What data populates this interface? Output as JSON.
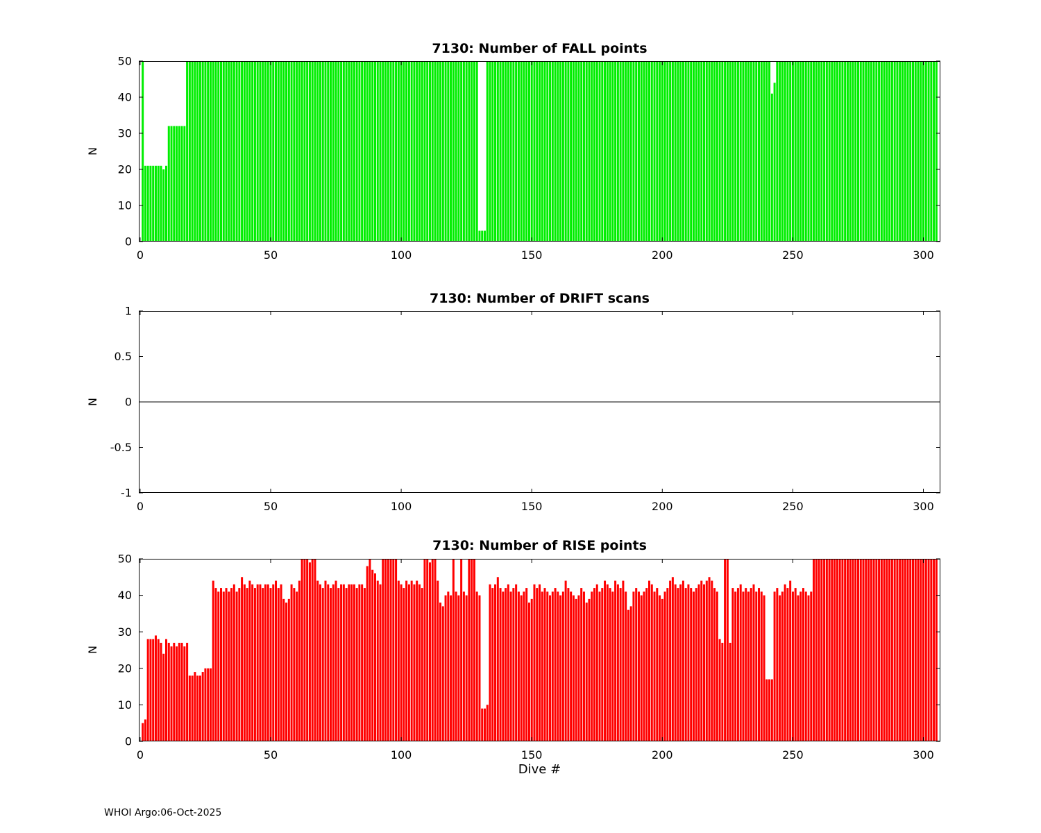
{
  "footer": {
    "text": "WHOI Argo:06-Oct-2025"
  },
  "chart_data": [
    {
      "id": "fall",
      "type": "bar",
      "title": "7130: Number of FALL points",
      "ylabel": "N",
      "xlabel": "",
      "bar_color": "#00ee00",
      "xlim": [
        -0.5,
        306.5
      ],
      "ylim": [
        0,
        50
      ],
      "xticks": [
        0,
        50,
        100,
        150,
        200,
        250,
        300
      ],
      "yticks": [
        0,
        10,
        20,
        30,
        40,
        50
      ],
      "x_start_dive": 1,
      "values": [
        50,
        21,
        21,
        21,
        21,
        21,
        21,
        21,
        20,
        21,
        32,
        32,
        32,
        32,
        32,
        32,
        32,
        50,
        50,
        50,
        50,
        50,
        50,
        50,
        50,
        50,
        50,
        50,
        50,
        50,
        50,
        50,
        50,
        50,
        50,
        50,
        50,
        50,
        50,
        50,
        50,
        50,
        50,
        50,
        50,
        50,
        50,
        50,
        50,
        50,
        50,
        50,
        50,
        50,
        50,
        50,
        50,
        50,
        50,
        50,
        50,
        50,
        50,
        50,
        50,
        50,
        50,
        50,
        50,
        50,
        50,
        50,
        50,
        50,
        50,
        50,
        50,
        50,
        50,
        50,
        50,
        50,
        50,
        50,
        50,
        50,
        50,
        50,
        50,
        50,
        50,
        50,
        50,
        50,
        50,
        50,
        50,
        50,
        50,
        50,
        50,
        50,
        50,
        50,
        50,
        50,
        50,
        50,
        50,
        50,
        50,
        50,
        50,
        50,
        50,
        50,
        50,
        50,
        50,
        50,
        50,
        50,
        50,
        50,
        50,
        50,
        50,
        50,
        50,
        3,
        3,
        3,
        50,
        50,
        50,
        50,
        50,
        50,
        50,
        50,
        50,
        50,
        50,
        50,
        50,
        50,
        50,
        50,
        50,
        50,
        50,
        50,
        50,
        50,
        50,
        50,
        50,
        50,
        50,
        50,
        50,
        50,
        50,
        50,
        50,
        50,
        50,
        50,
        50,
        50,
        50,
        50,
        50,
        50,
        50,
        50,
        50,
        50,
        50,
        50,
        50,
        50,
        50,
        50,
        50,
        50,
        50,
        50,
        50,
        50,
        50,
        50,
        50,
        50,
        50,
        50,
        50,
        50,
        50,
        50,
        50,
        50,
        50,
        50,
        50,
        50,
        50,
        50,
        50,
        50,
        50,
        50,
        50,
        50,
        50,
        50,
        50,
        50,
        50,
        50,
        50,
        50,
        50,
        50,
        50,
        50,
        50,
        50,
        50,
        50,
        50,
        50,
        50,
        50,
        50,
        50,
        50,
        50,
        50,
        50,
        50,
        41,
        44,
        50,
        50,
        50,
        50,
        50,
        50,
        50,
        50,
        50,
        50,
        50,
        50,
        50,
        50,
        50,
        50,
        50,
        50,
        50,
        50,
        50,
        50,
        50,
        50,
        50,
        50,
        50,
        50,
        50,
        50,
        50,
        50,
        50,
        50,
        50,
        50,
        50,
        50,
        50,
        50,
        50,
        50,
        50,
        50,
        50,
        50,
        50,
        50,
        50,
        50,
        50,
        50,
        50,
        50,
        50,
        50,
        50,
        50,
        50,
        50,
        50,
        50
      ]
    },
    {
      "id": "drift",
      "type": "bar",
      "title": "7130: Number of DRIFT scans",
      "ylabel": "N",
      "xlabel": "",
      "bar_color": "#00ee00",
      "xlim": [
        -0.5,
        306.5
      ],
      "ylim": [
        -1,
        1
      ],
      "xticks": [
        0,
        50,
        100,
        150,
        200,
        250,
        300
      ],
      "yticks": [
        -1,
        -0.5,
        0,
        0.5,
        1
      ],
      "x_start_dive": 1,
      "n_dives": 305,
      "constant_value": 0,
      "zero_line": true
    },
    {
      "id": "rise",
      "type": "bar",
      "title": "7130: Number of RISE points",
      "ylabel": "N",
      "xlabel": "Dive #",
      "bar_color": "#ff0000",
      "xlim": [
        -0.5,
        306.5
      ],
      "ylim": [
        0,
        50
      ],
      "xticks": [
        0,
        50,
        100,
        150,
        200,
        250,
        300
      ],
      "yticks": [
        0,
        10,
        20,
        30,
        40,
        50
      ],
      "x_start_dive": 1,
      "values": [
        5,
        6,
        28,
        28,
        28,
        29,
        28,
        27,
        24,
        28,
        27,
        26,
        27,
        26,
        27,
        27,
        26,
        27,
        18,
        18,
        19,
        18,
        18,
        19,
        20,
        20,
        20,
        44,
        42,
        41,
        42,
        41,
        42,
        41,
        42,
        43,
        41,
        42,
        45,
        43,
        42,
        44,
        43,
        42,
        43,
        43,
        42,
        43,
        43,
        42,
        43,
        44,
        42,
        43,
        39,
        38,
        39,
        43,
        42,
        41,
        44,
        50,
        50,
        50,
        49,
        50,
        50,
        44,
        43,
        42,
        44,
        43,
        42,
        43,
        44,
        42,
        43,
        43,
        42,
        43,
        43,
        43,
        42,
        43,
        43,
        42,
        48,
        50,
        47,
        46,
        44,
        43,
        50,
        50,
        50,
        50,
        50,
        50,
        44,
        43,
        42,
        44,
        43,
        44,
        43,
        44,
        43,
        42,
        50,
        50,
        49,
        50,
        50,
        44,
        38,
        37,
        40,
        41,
        40,
        50,
        41,
        40,
        50,
        41,
        40,
        50,
        50,
        50,
        41,
        40,
        9,
        9,
        10,
        43,
        42,
        43,
        45,
        42,
        41,
        42,
        43,
        41,
        42,
        43,
        41,
        40,
        41,
        42,
        38,
        39,
        43,
        42,
        43,
        41,
        42,
        41,
        40,
        41,
        42,
        41,
        40,
        41,
        44,
        42,
        41,
        40,
        39,
        40,
        42,
        41,
        38,
        39,
        41,
        42,
        43,
        41,
        42,
        44,
        43,
        42,
        41,
        44,
        43,
        42,
        44,
        41,
        36,
        37,
        41,
        42,
        41,
        40,
        41,
        42,
        44,
        43,
        41,
        42,
        40,
        39,
        41,
        42,
        44,
        45,
        43,
        42,
        43,
        44,
        42,
        43,
        42,
        41,
        42,
        43,
        44,
        43,
        44,
        45,
        44,
        42,
        41,
        28,
        27,
        50,
        50,
        27,
        42,
        41,
        42,
        43,
        41,
        42,
        41,
        42,
        43,
        41,
        42,
        41,
        40,
        17,
        17,
        17,
        41,
        42,
        40,
        41,
        43,
        42,
        44,
        41,
        42,
        40,
        41,
        42,
        41,
        40,
        41,
        50,
        50,
        50,
        50,
        50,
        50,
        50,
        50,
        50,
        50,
        50,
        50,
        50,
        50,
        50,
        50,
        50,
        50,
        50,
        50,
        50,
        50,
        50,
        50,
        50,
        50,
        50,
        50,
        50,
        50,
        50,
        50,
        50,
        50,
        50,
        50,
        50,
        50,
        50,
        50,
        50,
        50,
        50,
        50,
        50,
        50,
        50,
        50
      ]
    }
  ]
}
